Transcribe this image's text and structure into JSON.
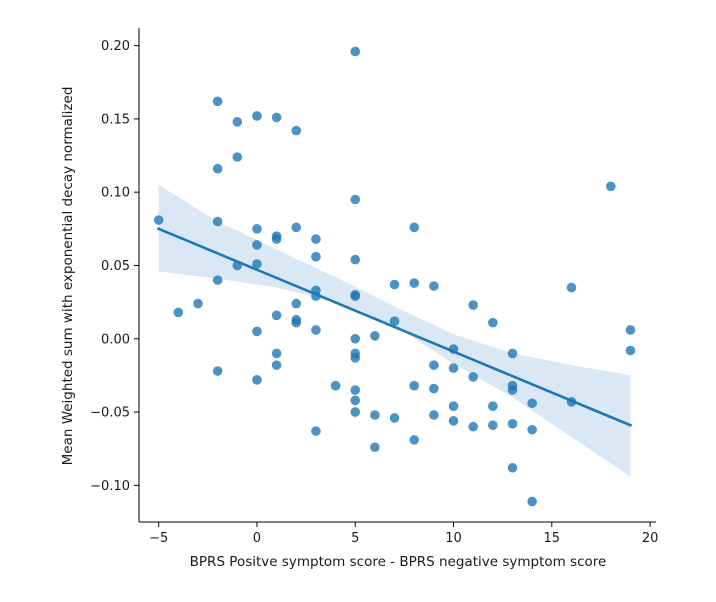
{
  "chart_data": {
    "type": "scatter",
    "title": "",
    "xlabel": "BPRS Positve symptom score - BPRS negative symptom score",
    "ylabel": "Mean Weighted sum with exponential decay normalized",
    "xlim": [
      -6,
      20.3
    ],
    "ylim": [
      -0.125,
      0.212
    ],
    "xticks": [
      -5,
      0,
      5,
      10,
      15,
      20
    ],
    "xtick_labels": [
      "−5",
      "0",
      "5",
      "10",
      "15",
      "20"
    ],
    "yticks": [
      -0.1,
      -0.05,
      0.0,
      0.05,
      0.1,
      0.15,
      0.2
    ],
    "ytick_labels": [
      "−0.10",
      "−0.05",
      "0.00",
      "0.05",
      "0.10",
      "0.15",
      "0.20"
    ],
    "grid": false,
    "point_color": "#1f77b4",
    "line_color": "#1f77b4",
    "band_color": "#a6c8e6",
    "regression": {
      "x_start": -5,
      "y_start": 0.075,
      "x_end": 19,
      "y_end": -0.059
    },
    "confidence_band": {
      "x": [
        -5,
        -2,
        1,
        4,
        7,
        10,
        13,
        16,
        19
      ],
      "upper": [
        0.105,
        0.08,
        0.061,
        0.042,
        0.022,
        0.003,
        -0.01,
        -0.018,
        -0.025
      ],
      "lower": [
        0.046,
        0.041,
        0.035,
        0.025,
        0.009,
        -0.017,
        -0.04,
        -0.067,
        -0.094
      ]
    },
    "points": [
      {
        "x": -5,
        "y": 0.081
      },
      {
        "x": -4,
        "y": 0.018
      },
      {
        "x": -3,
        "y": 0.024
      },
      {
        "x": -2,
        "y": 0.162
      },
      {
        "x": -2,
        "y": 0.116
      },
      {
        "x": -2,
        "y": 0.08
      },
      {
        "x": -2,
        "y": 0.04
      },
      {
        "x": -2,
        "y": -0.022
      },
      {
        "x": -1,
        "y": 0.148
      },
      {
        "x": -1,
        "y": 0.124
      },
      {
        "x": -1,
        "y": 0.05
      },
      {
        "x": 0,
        "y": 0.152
      },
      {
        "x": 0,
        "y": 0.075
      },
      {
        "x": 0,
        "y": 0.064
      },
      {
        "x": 0,
        "y": 0.051
      },
      {
        "x": 0,
        "y": 0.005
      },
      {
        "x": 0,
        "y": -0.028
      },
      {
        "x": 1,
        "y": 0.151
      },
      {
        "x": 1,
        "y": 0.07
      },
      {
        "x": 1,
        "y": 0.068
      },
      {
        "x": 1,
        "y": 0.016
      },
      {
        "x": 1,
        "y": -0.01
      },
      {
        "x": 1,
        "y": -0.018
      },
      {
        "x": 2,
        "y": 0.142
      },
      {
        "x": 2,
        "y": 0.076
      },
      {
        "x": 2,
        "y": 0.024
      },
      {
        "x": 2,
        "y": 0.013
      },
      {
        "x": 2,
        "y": 0.011
      },
      {
        "x": 3,
        "y": 0.068
      },
      {
        "x": 3,
        "y": 0.056
      },
      {
        "x": 3,
        "y": 0.033
      },
      {
        "x": 3,
        "y": 0.029
      },
      {
        "x": 3,
        "y": 0.006
      },
      {
        "x": 3,
        "y": -0.063
      },
      {
        "x": 4,
        "y": -0.032
      },
      {
        "x": 5,
        "y": 0.196
      },
      {
        "x": 5,
        "y": 0.095
      },
      {
        "x": 5,
        "y": 0.054
      },
      {
        "x": 5,
        "y": 0.03
      },
      {
        "x": 5,
        "y": 0.029
      },
      {
        "x": 5,
        "y": 0.0
      },
      {
        "x": 5,
        "y": -0.01
      },
      {
        "x": 5,
        "y": -0.013
      },
      {
        "x": 5,
        "y": -0.035
      },
      {
        "x": 5,
        "y": -0.042
      },
      {
        "x": 5,
        "y": -0.05
      },
      {
        "x": 6,
        "y": 0.002
      },
      {
        "x": 6,
        "y": -0.052
      },
      {
        "x": 6,
        "y": -0.074
      },
      {
        "x": 7,
        "y": 0.037
      },
      {
        "x": 7,
        "y": 0.012
      },
      {
        "x": 7,
        "y": -0.054
      },
      {
        "x": 8,
        "y": 0.076
      },
      {
        "x": 8,
        "y": 0.038
      },
      {
        "x": 8,
        "y": -0.032
      },
      {
        "x": 8,
        "y": -0.069
      },
      {
        "x": 9,
        "y": 0.036
      },
      {
        "x": 9,
        "y": -0.018
      },
      {
        "x": 9,
        "y": -0.034
      },
      {
        "x": 9,
        "y": -0.052
      },
      {
        "x": 10,
        "y": -0.007
      },
      {
        "x": 10,
        "y": -0.02
      },
      {
        "x": 10,
        "y": -0.046
      },
      {
        "x": 10,
        "y": -0.056
      },
      {
        "x": 11,
        "y": 0.023
      },
      {
        "x": 11,
        "y": -0.026
      },
      {
        "x": 11,
        "y": -0.06
      },
      {
        "x": 12,
        "y": 0.011
      },
      {
        "x": 12,
        "y": -0.046
      },
      {
        "x": 12,
        "y": -0.059
      },
      {
        "x": 13,
        "y": -0.01
      },
      {
        "x": 13,
        "y": -0.032
      },
      {
        "x": 13,
        "y": -0.035
      },
      {
        "x": 13,
        "y": -0.058
      },
      {
        "x": 13,
        "y": -0.088
      },
      {
        "x": 14,
        "y": -0.044
      },
      {
        "x": 14,
        "y": -0.062
      },
      {
        "x": 14,
        "y": -0.111
      },
      {
        "x": 16,
        "y": 0.035
      },
      {
        "x": 16,
        "y": -0.043
      },
      {
        "x": 18,
        "y": 0.104
      },
      {
        "x": 19,
        "y": 0.006
      },
      {
        "x": 19,
        "y": -0.008
      }
    ]
  }
}
